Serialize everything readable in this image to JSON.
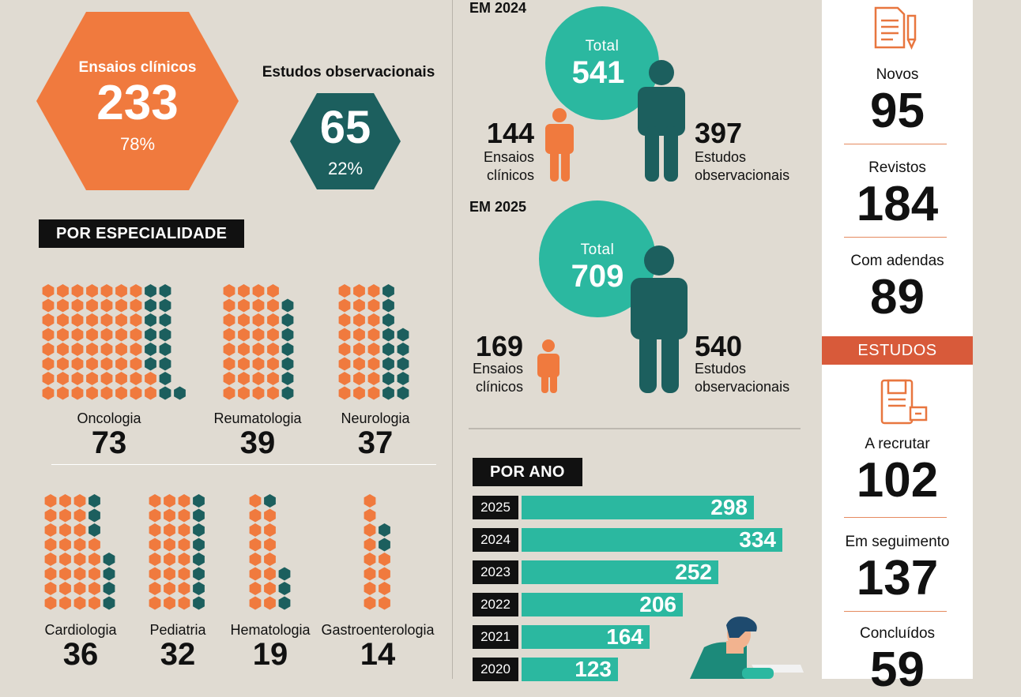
{
  "colors": {
    "background": "#e0dbd2",
    "orange": "#f07a3e",
    "teal": "#2bb8a0",
    "dark_teal": "#1c5f5e",
    "black": "#111111",
    "red": "#d85a3a"
  },
  "overview": {
    "clinical": {
      "label": "Ensaios clínicos",
      "value": "233",
      "pct": "78%"
    },
    "observational": {
      "label": "Estudos observacionais",
      "value": "65",
      "pct": "22%"
    }
  },
  "specialty": {
    "title": "POR ESPECIALIDADE",
    "items": [
      {
        "name": "Oncologia",
        "value": "73",
        "orange": 58,
        "teal": 15
      },
      {
        "name": "Reumatologia",
        "value": "39",
        "orange": 32,
        "teal": 7
      },
      {
        "name": "Neurologia",
        "value": "37",
        "orange": 24,
        "teal": 13
      },
      {
        "name": "Cardiologia",
        "value": "36",
        "orange": 29,
        "teal": 7
      },
      {
        "name": "Pediatria",
        "value": "32",
        "orange": 24,
        "teal": 8
      },
      {
        "name": "Hematologia",
        "value": "19",
        "orange": 15,
        "teal": 4
      },
      {
        "name": "Gastroenterologia",
        "value": "14",
        "orange": 12,
        "teal": 2
      }
    ]
  },
  "years": [
    {
      "heading": "EM 2024",
      "total_label": "Total",
      "total": "541",
      "clinical": "144",
      "clinical_label_1": "Ensaios",
      "clinical_label_2": "clínicos",
      "obs": "397",
      "obs_label_1": "Estudos",
      "obs_label_2": "observacionais"
    },
    {
      "heading": "EM 2025",
      "total_label": "Total",
      "total": "709",
      "clinical": "169",
      "clinical_label_1": "Ensaios",
      "clinical_label_2": "clínicos",
      "obs": "540",
      "obs_label_1": "Estudos",
      "obs_label_2": "observacionais"
    }
  ],
  "by_year": {
    "title": "POR ANO",
    "rows": [
      {
        "year": "2025",
        "value": 298
      },
      {
        "year": "2024",
        "value": 334
      },
      {
        "year": "2023",
        "value": 252
      },
      {
        "year": "2022",
        "value": 206
      },
      {
        "year": "2021",
        "value": 164
      },
      {
        "year": "2020",
        "value": 123
      }
    ]
  },
  "protocols": [
    {
      "label": "Novos",
      "value": "95"
    },
    {
      "label": "Revistos",
      "value": "184"
    },
    {
      "label": "Com adendas",
      "value": "89"
    }
  ],
  "studies": {
    "title": "ESTUDOS",
    "items": [
      {
        "label": "A recrutar",
        "value": "102"
      },
      {
        "label": "Em seguimento",
        "value": "137"
      },
      {
        "label": "Concluídos",
        "value": "59"
      }
    ]
  },
  "icons": {
    "protocol": "document-pencil-icon",
    "studies": "book-clipboard-icon",
    "person": "person-icon"
  }
}
